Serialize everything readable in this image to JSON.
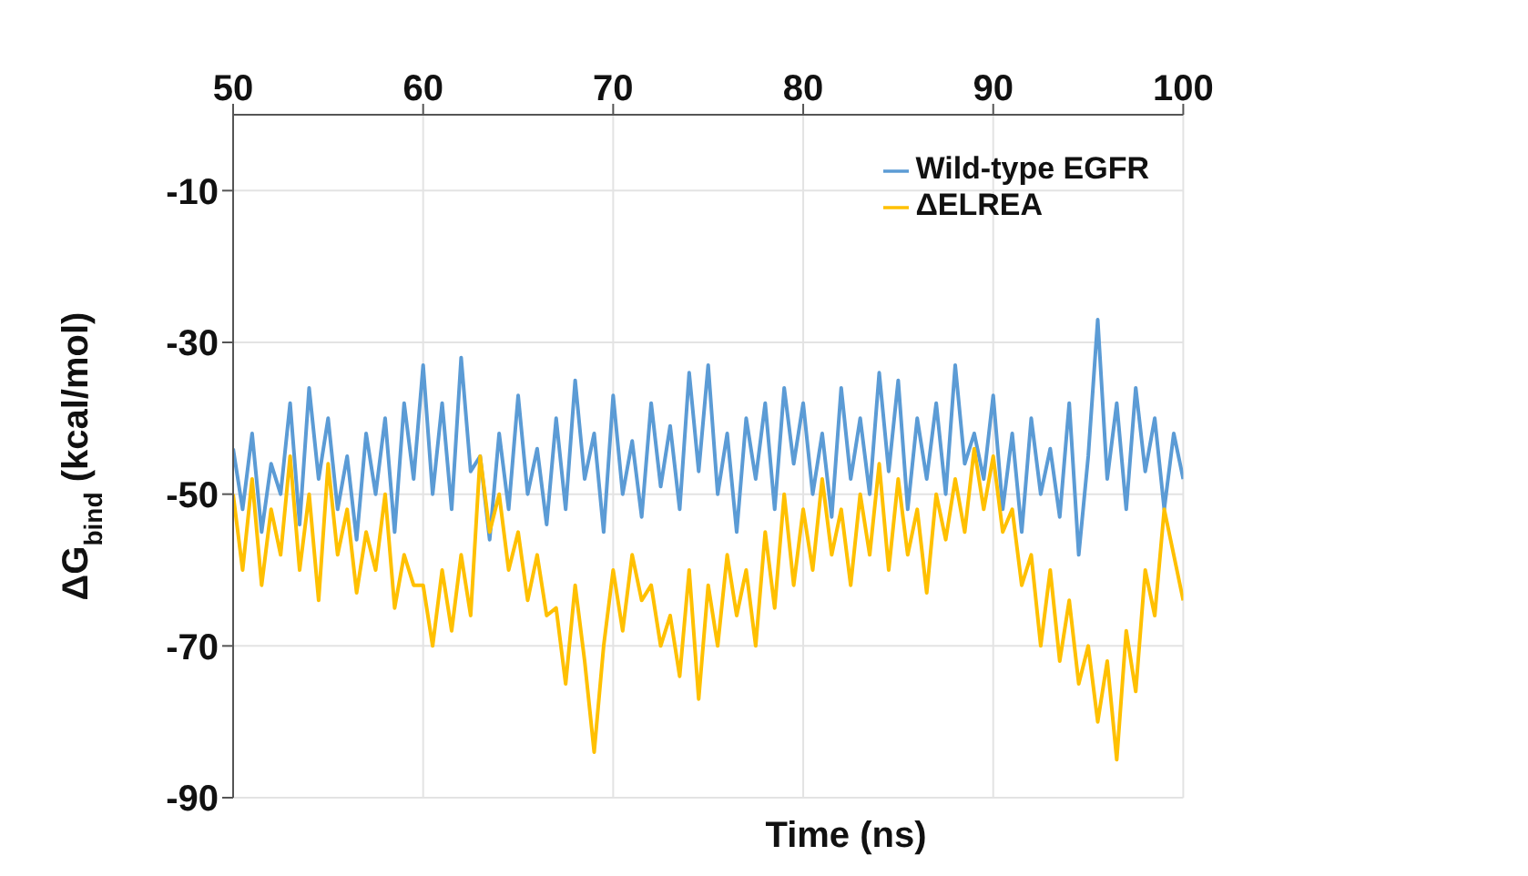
{
  "chart_data": {
    "type": "line",
    "xlabel": "Time (ns)",
    "ylabel": "ΔG$_{bind}$ (kcal/mol)",
    "x": [
      50,
      50.5,
      51,
      51.5,
      52,
      52.5,
      53,
      53.5,
      54,
      54.5,
      55,
      55.5,
      56,
      56.5,
      57,
      57.5,
      58,
      58.5,
      59,
      59.5,
      60,
      60.5,
      61,
      61.5,
      62,
      62.5,
      63,
      63.5,
      64,
      64.5,
      65,
      65.5,
      66,
      66.5,
      67,
      67.5,
      68,
      68.5,
      69,
      69.5,
      70,
      70.5,
      71,
      71.5,
      72,
      72.5,
      73,
      73.5,
      74,
      74.5,
      75,
      75.5,
      76,
      76.5,
      77,
      77.5,
      78,
      78.5,
      79,
      79.5,
      80,
      80.5,
      81,
      81.5,
      82,
      82.5,
      83,
      83.5,
      84,
      84.5,
      85,
      85.5,
      86,
      86.5,
      87,
      87.5,
      88,
      88.5,
      89,
      89.5,
      90,
      90.5,
      91,
      91.5,
      92,
      92.5,
      93,
      93.5,
      94,
      94.5,
      95,
      95.5,
      96,
      96.5,
      97,
      97.5,
      98,
      98.5,
      99,
      99.5,
      100
    ],
    "series": [
      {
        "name": "Wild-type EGFR",
        "color": "#5b9bd5",
        "values": [
          -44,
          -52,
          -42,
          -55,
          -46,
          -50,
          -38,
          -54,
          -36,
          -48,
          -40,
          -52,
          -45,
          -56,
          -42,
          -50,
          -40,
          -55,
          -38,
          -48,
          -33,
          -50,
          -38,
          -52,
          -32,
          -47,
          -45,
          -56,
          -42,
          -52,
          -37,
          -50,
          -44,
          -54,
          -40,
          -52,
          -35,
          -48,
          -42,
          -55,
          -37,
          -50,
          -43,
          -53,
          -38,
          -49,
          -41,
          -52,
          -34,
          -47,
          -33,
          -50,
          -42,
          -55,
          -40,
          -48,
          -38,
          -52,
          -36,
          -46,
          -38,
          -50,
          -42,
          -53,
          -36,
          -48,
          -40,
          -50,
          -34,
          -47,
          -35,
          -52,
          -40,
          -48,
          -38,
          -50,
          -33,
          -46,
          -42,
          -48,
          -37,
          -52,
          -42,
          -55,
          -40,
          -50,
          -44,
          -53,
          -38,
          -58,
          -45,
          -27,
          -48,
          -38,
          -52,
          -36,
          -47,
          -40,
          -52,
          -42,
          -48
        ]
      },
      {
        "name": "ΔELREA",
        "color": "#ffc000",
        "values": [
          -50,
          -60,
          -48,
          -62,
          -52,
          -58,
          -45,
          -60,
          -50,
          -64,
          -46,
          -58,
          -52,
          -63,
          -55,
          -60,
          -50,
          -65,
          -58,
          -62,
          -62,
          -70,
          -60,
          -68,
          -58,
          -66,
          -45,
          -55,
          -50,
          -60,
          -55,
          -64,
          -58,
          -66,
          -65,
          -75,
          -62,
          -72,
          -84,
          -70,
          -60,
          -68,
          -58,
          -64,
          -62,
          -70,
          -66,
          -74,
          -60,
          -77,
          -62,
          -70,
          -58,
          -66,
          -60,
          -70,
          -55,
          -65,
          -50,
          -62,
          -52,
          -60,
          -48,
          -58,
          -52,
          -62,
          -50,
          -58,
          -46,
          -60,
          -48,
          -58,
          -52,
          -63,
          -50,
          -56,
          -48,
          -55,
          -44,
          -52,
          -45,
          -55,
          -52,
          -62,
          -58,
          -70,
          -60,
          -72,
          -64,
          -75,
          -70,
          -80,
          -72,
          -85,
          -68,
          -76,
          -60,
          -66,
          -52,
          -58,
          -64
        ]
      }
    ],
    "xlim": [
      50,
      100
    ],
    "xticks": [
      50,
      60,
      70,
      80,
      90,
      100
    ],
    "ylim": [
      -90,
      0
    ],
    "yticks": [
      -90,
      -70,
      -50,
      -30,
      -10
    ],
    "grid": true,
    "legend": "top right",
    "marker": "none",
    "line_style": "solid"
  }
}
